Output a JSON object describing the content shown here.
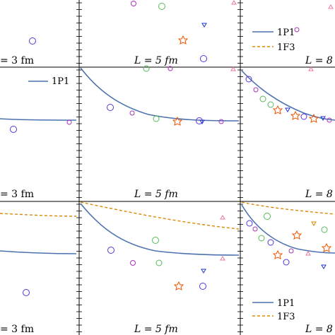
{
  "colors": {
    "p1": "#4c72b0",
    "f3": "#dd8800",
    "circle": "#5533dd",
    "open_circle_green": "#55bb55",
    "star": "#ee5500",
    "tri_down": "#2233cc",
    "hex": "#aa33bb",
    "tri_up": "#ee7799"
  },
  "panels": {
    "a": {
      "label": "= 3 fm"
    },
    "b": {
      "label": "L = 5 fm"
    },
    "c": {
      "label": "L = 8"
    },
    "d": {
      "label": "= 3 fm"
    },
    "e": {
      "label": "L = 5 fm"
    },
    "f": {
      "label": "L = 8"
    },
    "g": {
      "label": "= 3 fm"
    },
    "h": {
      "label": "L = 5 fm"
    },
    "i": {
      "label": "L = 8"
    }
  },
  "legends": {
    "top_right": {
      "p1": "1P1",
      "f3": "1F3"
    },
    "mid_left": {
      "p1": "1P1"
    },
    "bottom_right": {
      "p1": "1P1",
      "f3": "1F3"
    }
  },
  "chart_data": {
    "type": "scatter",
    "note_markers": [
      "circle",
      "green-circle",
      "star",
      "triangle-down",
      "hexagon",
      "triangle-up"
    ],
    "series": [
      {
        "name": "1P1",
        "style": "solid"
      },
      {
        "name": "1F3",
        "style": "dashed"
      }
    ]
  }
}
